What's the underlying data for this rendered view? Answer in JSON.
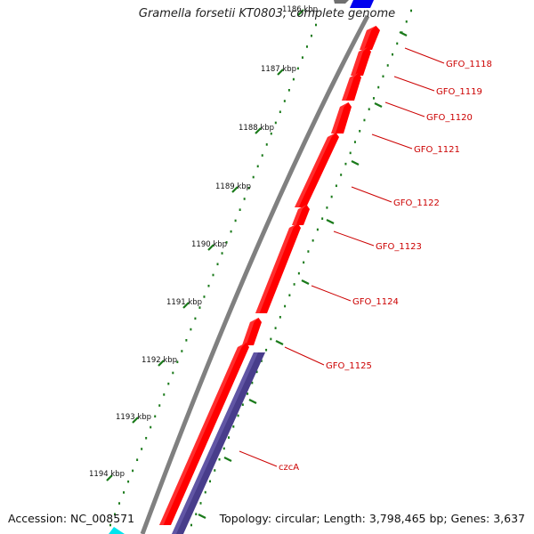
{
  "title": "Gramella forsetii KT0803, complete genome",
  "accession": "Accession: NC_008571",
  "summary": "Topology: circular; Length: 3,798,465 bp; Genes: 3,637",
  "colors": {
    "gene_forward": "#ff0000",
    "gene_other": "#483d8b",
    "backbone": "#808080",
    "ticks": "#1a7a1a",
    "label": "#cc0000",
    "top_blue": "#0000ee",
    "bottom_cyan": "#00e5ee"
  },
  "ruler": [
    {
      "label": "1186 kbp"
    },
    {
      "label": "1187 kbp"
    },
    {
      "label": "1188 kbp"
    },
    {
      "label": "1189 kbp"
    },
    {
      "label": "1190 kbp"
    },
    {
      "label": "1191 kbp"
    },
    {
      "label": "1192 kbp"
    },
    {
      "label": "1193 kbp"
    },
    {
      "label": "1194 kbp"
    }
  ],
  "genes": [
    {
      "name": "GFO_1118"
    },
    {
      "name": "GFO_1119"
    },
    {
      "name": "GFO_1120"
    },
    {
      "name": "GFO_1121"
    },
    {
      "name": "GFO_1122"
    },
    {
      "name": "GFO_1123"
    },
    {
      "name": "GFO_1124"
    },
    {
      "name": "GFO_1125"
    },
    {
      "name": "czcA"
    }
  ]
}
